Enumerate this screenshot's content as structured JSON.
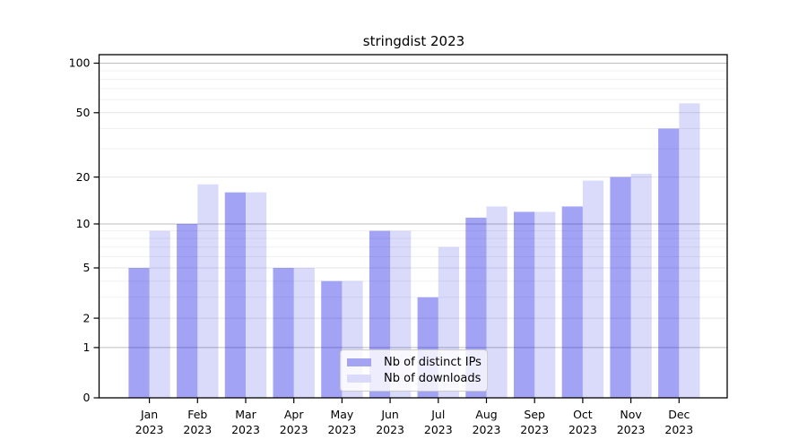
{
  "title": "stringdist 2023",
  "chart_data": {
    "type": "bar",
    "title": "stringdist 2023",
    "scale": "log1p",
    "categories": [
      "Jan",
      "Feb",
      "Mar",
      "Apr",
      "May",
      "Jun",
      "Jul",
      "Aug",
      "Sep",
      "Oct",
      "Nov",
      "Dec"
    ],
    "year": "2023",
    "series": [
      {
        "name": "Nb of distinct IPs",
        "color": "#a4a4f2",
        "fill": "rgba(0,0,230,0.36)",
        "values": [
          5,
          10,
          16,
          5,
          4,
          9,
          3,
          11,
          12,
          13,
          20,
          40
        ]
      },
      {
        "name": "Nb of downloads",
        "color": "#dadafa",
        "fill": "rgba(0,0,230,0.145)",
        "values": [
          9,
          18,
          16,
          5,
          4,
          9,
          7,
          13,
          12,
          19,
          21,
          57
        ]
      }
    ],
    "yticks": [
      0,
      1,
      2,
      5,
      10,
      20,
      50,
      100
    ],
    "minor_yticks": [
      3,
      4,
      6,
      7,
      8,
      9,
      30,
      40,
      60,
      70,
      80,
      90
    ],
    "ylim": [
      0,
      112
    ],
    "grid": "on",
    "legend_position": "bottom-center",
    "xlabel": "",
    "ylabel": ""
  }
}
